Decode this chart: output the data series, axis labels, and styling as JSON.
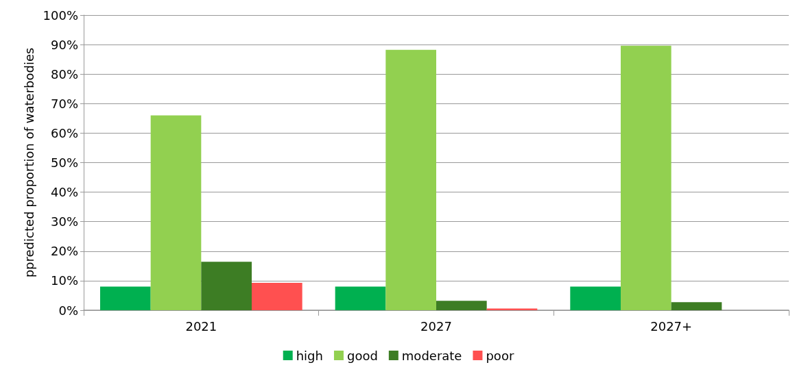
{
  "chart_data": {
    "type": "bar",
    "ylabel": "ppredicted proportion of waterbodies",
    "categories": [
      "2021",
      "2027",
      "2027+"
    ],
    "series": [
      {
        "name": "high",
        "color": "#00b050",
        "values": [
          8,
          8,
          8
        ]
      },
      {
        "name": "good",
        "color": "#92d050",
        "values": [
          66,
          88.2,
          89.6
        ]
      },
      {
        "name": "moderate",
        "color": "#3d7d24",
        "values": [
          16.4,
          3.2,
          2.7
        ]
      },
      {
        "name": "poor",
        "color": "#ff5050",
        "values": [
          9.3,
          0.6,
          0
        ]
      }
    ],
    "ylim": [
      0,
      100
    ],
    "yticks": [
      {
        "value": 0,
        "label": "0%"
      },
      {
        "value": 10,
        "label": "10%"
      },
      {
        "value": 20,
        "label": "20%"
      },
      {
        "value": 30,
        "label": "30%"
      },
      {
        "value": 40,
        "label": "40%"
      },
      {
        "value": 50,
        "label": "50%"
      },
      {
        "value": 60,
        "label": "60%"
      },
      {
        "value": 70,
        "label": "70%"
      },
      {
        "value": 80,
        "label": "80%"
      },
      {
        "value": 90,
        "label": "90%"
      },
      {
        "value": 100,
        "label": "100%"
      }
    ],
    "grid": "y",
    "legend": "bottom"
  }
}
